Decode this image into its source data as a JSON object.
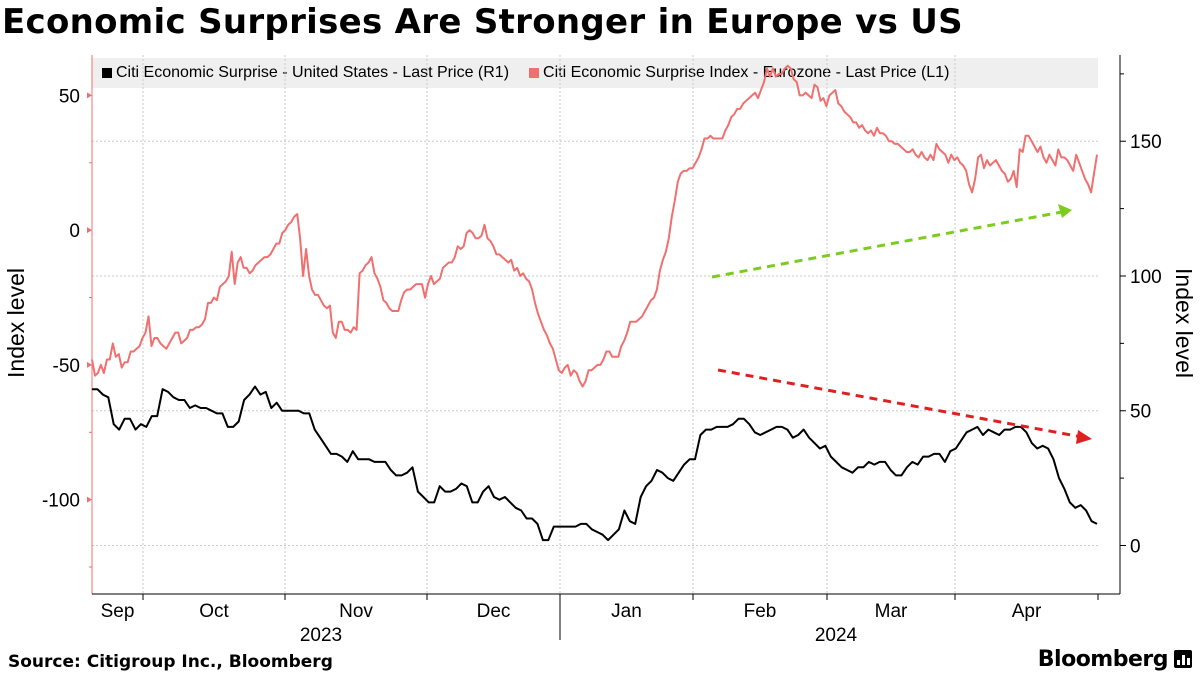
{
  "title": "Economic Surprises Are Stronger in Europe vs US",
  "source": "Source: Citigroup Inc., Bloomberg",
  "brand": "Bloomberg",
  "colors": {
    "us": "#000000",
    "eurozone": "#f07070",
    "green_arrow": "#7ccc1e",
    "red_arrow": "#e02020"
  },
  "chart_data": {
    "type": "line",
    "left_axis": {
      "label": "Index level",
      "ticks": [
        50,
        0,
        -50,
        -100
      ],
      "range": [
        -135,
        65
      ]
    },
    "right_axis": {
      "label": "Index level",
      "ticks": [
        150,
        100,
        50,
        0
      ],
      "range": [
        -18,
        182
      ]
    },
    "x_ticks": [
      "Sep",
      "Oct",
      "Nov",
      "Dec",
      "Jan",
      "Feb",
      "Mar",
      "Apr"
    ],
    "year_labels": [
      "2023",
      "2024"
    ],
    "series": [
      {
        "name": "Citi Economic Surprise - United States - Last Price (R1)",
        "axis": "right",
        "values": [
          58,
          58,
          56,
          55,
          45,
          43,
          47,
          47,
          43,
          45,
          44,
          48,
          48,
          58,
          57,
          55,
          54,
          54,
          51,
          52,
          51,
          51,
          50,
          49,
          49,
          44,
          44,
          46,
          54,
          56,
          59,
          56,
          57,
          51,
          53,
          50,
          50,
          50,
          50,
          49,
          49,
          43,
          40,
          37,
          34,
          34,
          33,
          31,
          35,
          32,
          32,
          32,
          31,
          31,
          31,
          28,
          26,
          26,
          27,
          29,
          20,
          18,
          16,
          16,
          22,
          20,
          20,
          21,
          23,
          22,
          16,
          16,
          20,
          22,
          18,
          17,
          18,
          16,
          14,
          13,
          10,
          10,
          8,
          2,
          2,
          7,
          7,
          7,
          7,
          7,
          8,
          8,
          6,
          5,
          4,
          2,
          4,
          6,
          13,
          9,
          8,
          18,
          22,
          24,
          28,
          27,
          25,
          24,
          27,
          30,
          32,
          32,
          41,
          43,
          43,
          44,
          44,
          44,
          45,
          47,
          47,
          45,
          42,
          41,
          42,
          43,
          44,
          44,
          43,
          40,
          41,
          43,
          40,
          38,
          36,
          37,
          33,
          31,
          29,
          28,
          27,
          29,
          29,
          31,
          30,
          31,
          31,
          28,
          26,
          26,
          29,
          31,
          30,
          33,
          33,
          34,
          34,
          31,
          35,
          36,
          39,
          42,
          43,
          44,
          41,
          43,
          42,
          41,
          43,
          43,
          44,
          44,
          42,
          38,
          36,
          37,
          36,
          32,
          25,
          21,
          16,
          14,
          15,
          13,
          9,
          8
        ]
      },
      {
        "name": "Citi Economic Surprise Index - Eurozone - Last Price (L1)",
        "axis": "left",
        "values": [
          -48,
          -54,
          -53,
          -50,
          -53,
          -48,
          -48,
          -42,
          -47,
          -46,
          -51,
          -49,
          -49,
          -45,
          -45,
          -44,
          -43,
          -40,
          -38,
          -32,
          -43,
          -40,
          -40,
          -42,
          -43,
          -44,
          -42,
          -40,
          -38,
          -38,
          -42,
          -41,
          -40,
          -37,
          -37,
          -36,
          -36,
          -35,
          -33,
          -27,
          -27,
          -25,
          -26,
          -21,
          -20,
          -19,
          -17,
          -8,
          -20,
          -12,
          -10,
          -14,
          -14,
          -16,
          -15,
          -13,
          -12,
          -11,
          -10,
          -10,
          -9,
          -7,
          -5,
          -5,
          -1,
          0,
          2,
          3,
          5,
          6,
          -3,
          -17,
          -7,
          -17,
          -22,
          -24,
          -24,
          -26,
          -28,
          -29,
          -28,
          -38,
          -40,
          -34,
          -34,
          -37,
          -37,
          -38,
          -36,
          -37,
          -16,
          -15,
          -13,
          -12,
          -10,
          -16,
          -18,
          -21,
          -26,
          -27,
          -29,
          -30,
          -30,
          -30,
          -26,
          -23,
          -22,
          -22,
          -21,
          -20,
          -20,
          -20,
          -25,
          -20,
          -17,
          -20,
          -19,
          -18,
          -14,
          -13,
          -12,
          -12,
          -10,
          -6,
          -7,
          -6,
          -1,
          0,
          -1,
          -3,
          -3,
          -2,
          2,
          -3,
          -4,
          -6,
          -9,
          -9,
          -10,
          -11,
          -12,
          -11,
          -15,
          -14,
          -17,
          -16,
          -18,
          -19,
          -22,
          -27,
          -31,
          -34,
          -37,
          -39,
          -42,
          -44,
          -48,
          -52,
          -53,
          -51,
          -50,
          -54,
          -52,
          -53,
          -56,
          -58,
          -56,
          -52,
          -52,
          -51,
          -50,
          -50,
          -48,
          -45,
          -45,
          -47,
          -47,
          -47,
          -43,
          -41,
          -38,
          -34,
          -34,
          -34,
          -33,
          -32,
          -30,
          -28,
          -26,
          -25,
          -22,
          -15,
          -11,
          -8,
          -3,
          5,
          11,
          18,
          21,
          22,
          22,
          23,
          23,
          25,
          27,
          30,
          34,
          34,
          35,
          34,
          34,
          34,
          34,
          37,
          39,
          42,
          43,
          45,
          45,
          47,
          48,
          49,
          50,
          51,
          49,
          52,
          55,
          60,
          57,
          60,
          57,
          58,
          58,
          60,
          61,
          60,
          56,
          55,
          50,
          50,
          51,
          50,
          49,
          54,
          53,
          48,
          49,
          46,
          50,
          51,
          52,
          47,
          46,
          44,
          43,
          42,
          40,
          40,
          38,
          39,
          37,
          36,
          37,
          35,
          38,
          36,
          36,
          35,
          33,
          33,
          32,
          32,
          31,
          30,
          29,
          29,
          30,
          28,
          27,
          29,
          27,
          26,
          28,
          26,
          32,
          30,
          29,
          28,
          25,
          28,
          26,
          27,
          25,
          24,
          22,
          17,
          14,
          19,
          27,
          28,
          23,
          26,
          24,
          25,
          26,
          24,
          22,
          21,
          18,
          19,
          22,
          16,
          30,
          29,
          35,
          35,
          33,
          31,
          29,
          31,
          27,
          25,
          28,
          26,
          24,
          30,
          27,
          27,
          26,
          24,
          22,
          28,
          25,
          22,
          19,
          17,
          14,
          21,
          28
        ]
      }
    ],
    "annotations": [
      {
        "type": "arrow",
        "color": "green",
        "direction": "up"
      },
      {
        "type": "arrow",
        "color": "red",
        "direction": "down"
      }
    ]
  }
}
